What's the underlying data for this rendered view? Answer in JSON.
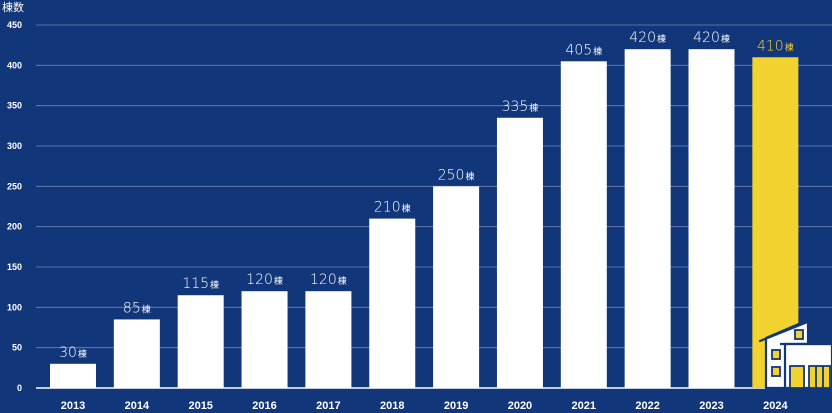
{
  "chart_data": {
    "type": "bar",
    "ylabel": "棟数",
    "xlabel": "",
    "ylim": [
      0,
      450
    ],
    "yticks": [
      0,
      50,
      100,
      150,
      200,
      250,
      300,
      350,
      400,
      450
    ],
    "grid": true,
    "categories": [
      "2013",
      "2014",
      "2015",
      "2016",
      "2017",
      "2018",
      "2019",
      "2020",
      "2021",
      "2022",
      "2023",
      "2024"
    ],
    "values": [
      30,
      85,
      115,
      120,
      120,
      210,
      250,
      335,
      405,
      420,
      420,
      410
    ],
    "unit": "棟",
    "highlight_index": 11
  },
  "colors": {
    "background": "#12367a",
    "bar": "#ffffff",
    "highlight": "#f2d22e",
    "label": "#ffffff",
    "highlight_label": "#f2d22e",
    "grid": "#6f86b8"
  },
  "icons": {
    "house": "house-icon"
  }
}
